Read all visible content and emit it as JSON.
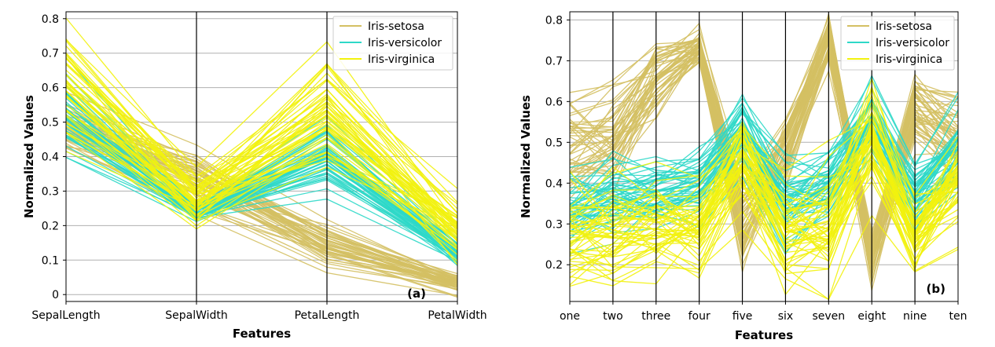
{
  "colors": {
    "setosa": "#d4c063",
    "versicolor": "#2ed8c8",
    "virginica": "#f2f20e",
    "grid": "#b0b0b0"
  },
  "chart_data": [
    {
      "type": "line",
      "kind": "parallel-coordinates",
      "panel_label": "(a)",
      "xlabel": "Features",
      "ylabel": "Normalized Values",
      "categories": [
        "SepalLength",
        "SepalWidth",
        "PetalLength",
        "PetalWidth"
      ],
      "ylim": [
        -0.02,
        0.82
      ],
      "yticks": [
        0,
        0.1,
        0.2,
        0.3,
        0.4,
        0.5,
        0.6,
        0.7,
        0.8
      ],
      "ytick_labels": [
        "0",
        "0.1",
        "0.2",
        "0.3",
        "0.4",
        "0.5",
        "0.6",
        "0.7",
        "0.8"
      ],
      "grid": true,
      "legend_position": "top-right",
      "series": [
        {
          "name": "Iris-setosa",
          "color_key": "setosa",
          "center": [
            0.49,
            0.34,
            0.14,
            0.03
          ],
          "spread": [
            0.05,
            0.06,
            0.04,
            0.02
          ],
          "count": 50
        },
        {
          "name": "Iris-versicolor",
          "color_key": "versicolor",
          "center": [
            0.54,
            0.24,
            0.4,
            0.12
          ],
          "spread": [
            0.07,
            0.02,
            0.06,
            0.02
          ],
          "count": 50
        },
        {
          "name": "Iris-virginica",
          "color_key": "virginica",
          "center": [
            0.61,
            0.28,
            0.53,
            0.19
          ],
          "spread": [
            0.12,
            0.06,
            0.12,
            0.06
          ],
          "count": 50
        }
      ]
    },
    {
      "type": "line",
      "kind": "parallel-coordinates",
      "panel_label": "(b)",
      "xlabel": "Features",
      "ylabel": "Normalized Values",
      "categories": [
        "one",
        "two",
        "three",
        "four",
        "five",
        "six",
        "seven",
        "eight",
        "nine",
        "ten"
      ],
      "ylim": [
        0.11,
        0.82
      ],
      "yticks": [
        0.2,
        0.3,
        0.4,
        0.5,
        0.6,
        0.7,
        0.8
      ],
      "ytick_labels": [
        "0.2",
        "0.3",
        "0.4",
        "0.5",
        "0.6",
        "0.7",
        "0.8"
      ],
      "grid": true,
      "legend_position": "top-right",
      "series": [
        {
          "name": "Iris-setosa",
          "color_key": "setosa",
          "center": [
            0.5,
            0.5,
            0.66,
            0.73,
            0.3,
            0.48,
            0.75,
            0.22,
            0.58,
            0.5
          ],
          "spread": [
            0.08,
            0.08,
            0.06,
            0.03,
            0.08,
            0.06,
            0.04,
            0.05,
            0.05,
            0.08
          ],
          "count": 50
        },
        {
          "name": "Iris-versicolor",
          "color_key": "versicolor",
          "center": [
            0.34,
            0.37,
            0.38,
            0.4,
            0.52,
            0.36,
            0.4,
            0.55,
            0.36,
            0.48
          ],
          "spread": [
            0.06,
            0.07,
            0.05,
            0.05,
            0.06,
            0.07,
            0.05,
            0.06,
            0.06,
            0.06
          ],
          "count": 50
        },
        {
          "name": "Iris-virginica",
          "color_key": "virginica",
          "center": [
            0.25,
            0.27,
            0.28,
            0.3,
            0.45,
            0.27,
            0.28,
            0.5,
            0.27,
            0.4
          ],
          "spread": [
            0.08,
            0.08,
            0.07,
            0.07,
            0.08,
            0.08,
            0.08,
            0.08,
            0.06,
            0.09
          ],
          "count": 50
        }
      ]
    }
  ]
}
